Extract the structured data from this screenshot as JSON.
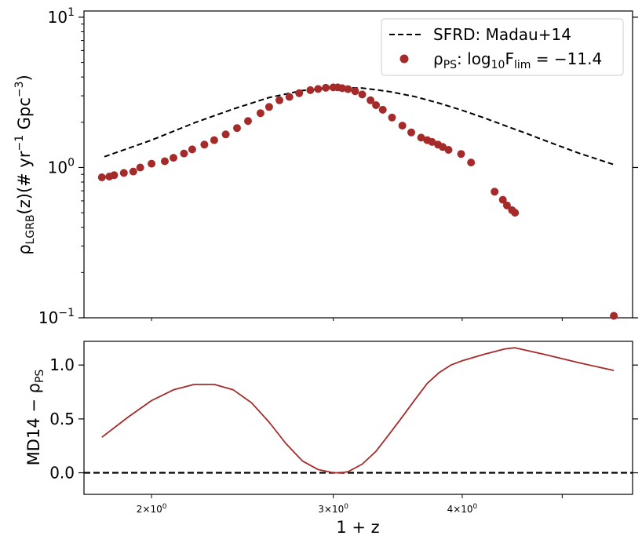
{
  "chart_data": [
    {
      "type": "scatter",
      "panel": "top",
      "x_scale": "log",
      "y_scale": "log",
      "xlim": [
        1.72,
        5.85
      ],
      "ylim": [
        0.1,
        11
      ],
      "ylabel": {
        "main": "ρ",
        "sub": "LGRB",
        "rest": "(z)(# yr",
        "sup1": "−1",
        "mid": " Gpc",
        "sup2": "−3",
        "end": ")"
      },
      "y_ticks": [
        {
          "value": 10,
          "base": "10",
          "exp": "1"
        },
        {
          "value": 1,
          "base": "10",
          "exp": "0"
        },
        {
          "value": 0.1,
          "base": "10",
          "exp": "−1"
        }
      ],
      "legend": {
        "placement": "top-right",
        "entries": [
          {
            "name": "sfrd",
            "text": "SFRD: Madau+14"
          },
          {
            "name": "ps",
            "parts": {
              "rho": "ρ",
              "rho_sub": "PS",
              "colon": ": log",
              "log_sub": "10",
              "F": "F",
              "F_sub": "lim",
              "rest": " = −11.4"
            }
          }
        ]
      },
      "series": [
        {
          "name": "SFRD: Madau+14",
          "style": "dashed",
          "color": "#000000",
          "x": [
            1.8,
            2.0,
            2.2,
            2.4,
            2.6,
            2.8,
            3.0,
            3.2,
            3.4,
            3.6,
            3.8,
            4.0,
            4.2,
            4.4,
            4.6,
            4.8,
            5.0,
            5.2,
            5.4,
            5.6
          ],
          "y": [
            1.18,
            1.52,
            1.98,
            2.45,
            2.92,
            3.25,
            3.4,
            3.38,
            3.2,
            2.96,
            2.68,
            2.4,
            2.14,
            1.9,
            1.7,
            1.52,
            1.37,
            1.24,
            1.14,
            1.05
          ]
        },
        {
          "name": "ρ_PS: log10 F_lim = −11.4",
          "style": "markers",
          "color": "#a52a2a",
          "x": [
            1.79,
            1.82,
            1.84,
            1.88,
            1.92,
            1.95,
            2.0,
            2.06,
            2.1,
            2.15,
            2.19,
            2.25,
            2.3,
            2.36,
            2.42,
            2.48,
            2.55,
            2.6,
            2.66,
            2.72,
            2.78,
            2.85,
            2.9,
            2.95,
            3.0,
            3.03,
            3.06,
            3.1,
            3.15,
            3.2,
            3.26,
            3.3,
            3.35,
            3.42,
            3.5,
            3.57,
            3.65,
            3.7,
            3.74,
            3.79,
            3.83,
            3.88,
            3.99,
            4.08,
            4.3,
            4.38,
            4.42,
            4.47,
            4.5,
            5.61
          ],
          "y": [
            0.86,
            0.87,
            0.89,
            0.92,
            0.94,
            1.0,
            1.06,
            1.1,
            1.16,
            1.24,
            1.32,
            1.42,
            1.52,
            1.66,
            1.83,
            2.04,
            2.3,
            2.53,
            2.8,
            2.95,
            3.12,
            3.27,
            3.33,
            3.39,
            3.41,
            3.41,
            3.37,
            3.32,
            3.22,
            3.06,
            2.8,
            2.6,
            2.42,
            2.15,
            1.9,
            1.71,
            1.58,
            1.52,
            1.48,
            1.42,
            1.37,
            1.31,
            1.23,
            1.08,
            0.69,
            0.61,
            0.56,
            0.52,
            0.5,
            0.103
          ]
        }
      ]
    },
    {
      "type": "line",
      "panel": "bottom",
      "x_scale": "log",
      "xlim": [
        1.72,
        5.85
      ],
      "ylim": [
        -0.2,
        1.22
      ],
      "xlabel": "1 + z",
      "ylabel": {
        "main": "MD14 − ρ",
        "sub": "PS"
      },
      "x_ticks": [
        {
          "value": 2,
          "base": "2×10",
          "exp": "0"
        },
        {
          "value": 3,
          "base": "3×10",
          "exp": "0"
        },
        {
          "value": 4,
          "base": "4×10",
          "exp": "0"
        }
      ],
      "y_ticks": [
        {
          "value": 1.0,
          "label": "1.0"
        },
        {
          "value": 0.5,
          "label": "0.5"
        },
        {
          "value": 0.0,
          "label": "0.0"
        }
      ],
      "reference_line": {
        "y": 0.0,
        "style": "dashed",
        "color": "#000000"
      },
      "series": [
        {
          "name": "MD14 − ρ_PS",
          "color": "#a52a2a",
          "x": [
            1.79,
            1.9,
            2.0,
            2.1,
            2.2,
            2.3,
            2.4,
            2.5,
            2.6,
            2.7,
            2.8,
            2.9,
            3.0,
            3.05,
            3.1,
            3.2,
            3.3,
            3.4,
            3.5,
            3.6,
            3.7,
            3.8,
            3.9,
            4.0,
            4.2,
            4.4,
            4.5,
            4.8,
            5.2,
            5.61
          ],
          "y": [
            0.33,
            0.52,
            0.67,
            0.77,
            0.82,
            0.82,
            0.77,
            0.65,
            0.47,
            0.27,
            0.11,
            0.03,
            0.0,
            0.0,
            0.01,
            0.08,
            0.2,
            0.36,
            0.52,
            0.68,
            0.83,
            0.93,
            1.0,
            1.04,
            1.1,
            1.15,
            1.16,
            1.1,
            1.02,
            0.95
          ]
        }
      ]
    }
  ]
}
